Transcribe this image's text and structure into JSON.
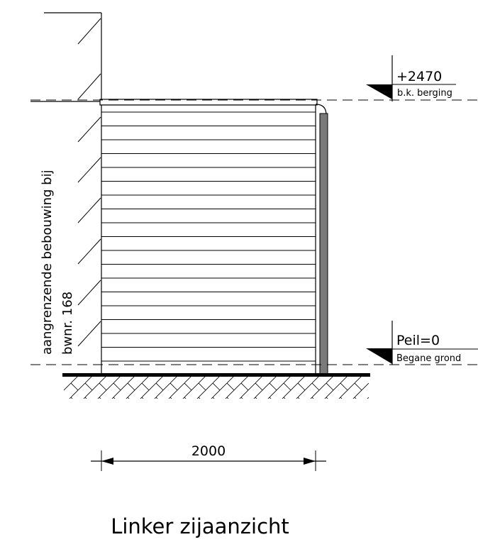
{
  "neighbor": {
    "line1": "aangrenzende bebouwing bij",
    "line2": "bwnr. 168"
  },
  "levels": {
    "top": {
      "value": "+2470",
      "desc": "b.k. berging"
    },
    "bottom": {
      "value": "Peil=0",
      "desc": "Begane grond"
    }
  },
  "dimension": {
    "width": "2000"
  },
  "title": "Linker zijaanzicht",
  "colors": {
    "line": "#000000",
    "downpipe": "#7a7a7a",
    "marker": "#000000"
  }
}
